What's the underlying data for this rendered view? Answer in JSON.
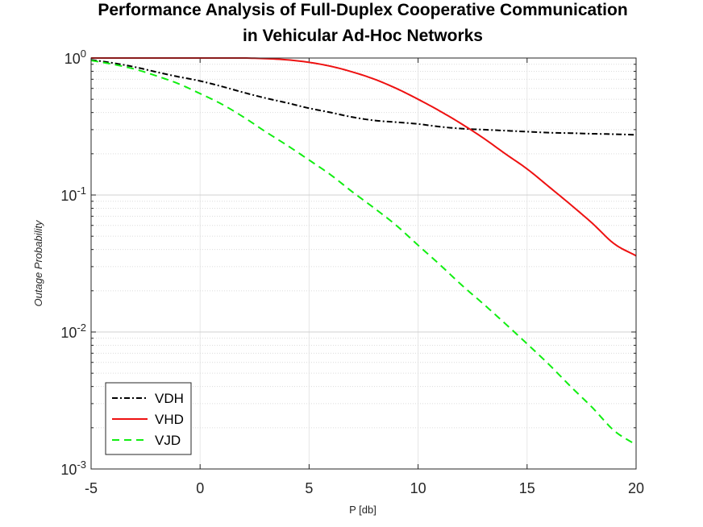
{
  "chart_data": {
    "type": "line",
    "title": [
      "Performance Analysis of Full-Duplex Cooperative Communication",
      "in Vehicular Ad-Hoc Networks"
    ],
    "xlabel": "P [db]",
    "ylabel": "Outage Probability",
    "xlim": [
      -5,
      20
    ],
    "ylim": [
      0.001,
      1
    ],
    "yscale": "log",
    "grid": true,
    "legend_position": "bottom-left",
    "xticks": [
      "-5",
      "0",
      "5",
      "10",
      "15",
      "20"
    ],
    "yticks": [
      {
        "base": "10",
        "exp": "0"
      },
      {
        "base": "10",
        "exp": "-1"
      },
      {
        "base": "10",
        "exp": "-2"
      },
      {
        "base": "10",
        "exp": "-3"
      }
    ],
    "x": [
      -5,
      -4,
      -3,
      -2,
      -1,
      0,
      1,
      2,
      3,
      4,
      5,
      6,
      7,
      8,
      9,
      10,
      11,
      12,
      13,
      14,
      15,
      16,
      17,
      18,
      19,
      20
    ],
    "series": [
      {
        "name": "VDH",
        "color": "#000000",
        "dash": "dashdot",
        "values": [
          0.97,
          0.92,
          0.86,
          0.79,
          0.73,
          0.68,
          0.62,
          0.56,
          0.51,
          0.47,
          0.43,
          0.4,
          0.37,
          0.35,
          0.34,
          0.33,
          0.315,
          0.305,
          0.3,
          0.295,
          0.29,
          0.285,
          0.283,
          0.28,
          0.278,
          0.275
        ]
      },
      {
        "name": "VHD",
        "color": "#ee1111",
        "dash": "solid",
        "values": [
          1.0,
          1.0,
          1.0,
          1.0,
          1.0,
          1.0,
          1.0,
          1.0,
          0.99,
          0.97,
          0.93,
          0.87,
          0.79,
          0.7,
          0.6,
          0.5,
          0.41,
          0.33,
          0.26,
          0.2,
          0.155,
          0.115,
          0.085,
          0.062,
          0.044,
          0.036
        ]
      },
      {
        "name": "VJD",
        "color": "#11ee11",
        "dash": "dashed",
        "values": [
          0.96,
          0.9,
          0.83,
          0.74,
          0.65,
          0.55,
          0.46,
          0.37,
          0.29,
          0.23,
          0.18,
          0.14,
          0.105,
          0.08,
          0.06,
          0.043,
          0.031,
          0.022,
          0.016,
          0.0115,
          0.0082,
          0.0058,
          0.004,
          0.0028,
          0.0019,
          0.0015
        ]
      }
    ]
  }
}
